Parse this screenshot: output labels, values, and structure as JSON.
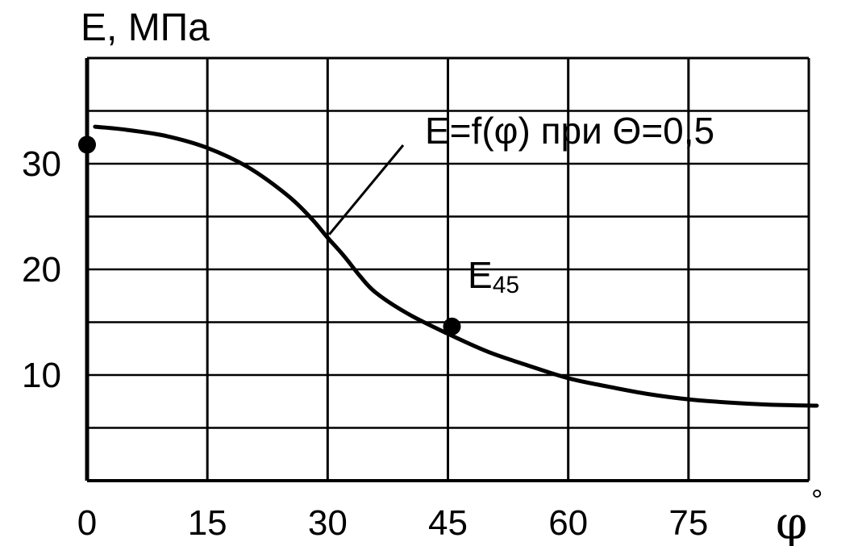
{
  "chart_data": {
    "type": "line",
    "title": "",
    "ylabel": "E, МПа",
    "xlabel_symbol": "φ",
    "xlabel_unit": "°",
    "xlim": [
      0,
      90
    ],
    "ylim": [
      0,
      40
    ],
    "grid": true,
    "x_ticks": [
      0,
      15,
      30,
      45,
      60,
      75
    ],
    "x_tick_labels": [
      "0",
      "15",
      "30",
      "45",
      "60",
      "75"
    ],
    "y_ticks": [
      10,
      20,
      30
    ],
    "y_tick_labels": [
      "10",
      "20",
      "30"
    ],
    "series": [
      {
        "name": "E=f(φ) при Θ=0,5",
        "x": [
          1,
          5,
          10,
          15,
          20,
          25,
          28,
          30,
          32,
          34,
          36,
          40,
          45,
          50,
          55,
          60,
          65,
          70,
          75,
          80,
          85,
          91
        ],
        "y": [
          33.5,
          33.2,
          32.6,
          31.5,
          29.7,
          27.0,
          24.8,
          23.0,
          21.3,
          19.4,
          17.8,
          15.8,
          13.9,
          12.2,
          10.9,
          9.7,
          8.9,
          8.2,
          7.7,
          7.4,
          7.2,
          7.1
        ]
      }
    ],
    "points": [
      {
        "x": 0,
        "y": 31.8,
        "label": ""
      },
      {
        "x": 45.5,
        "y": 14.6,
        "label": "E",
        "label_sub": "45"
      }
    ],
    "annotation": {
      "text": "E=f(φ) при Θ=0,5",
      "target_x": 29.8,
      "target_y": 23.0
    }
  }
}
